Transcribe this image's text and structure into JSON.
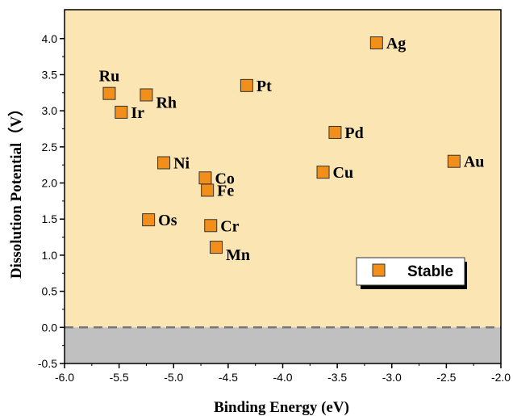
{
  "chart_data": {
    "type": "scatter",
    "xlabel": "Binding Energy (eV)",
    "ylabel": "Dissolution Potential（V）",
    "xlim": [
      -6.0,
      -2.0
    ],
    "ylim": [
      -0.5,
      4.4
    ],
    "x_ticks": [
      "-6.0",
      "-5.5",
      "-5.0",
      "-4.5",
      "-4.0",
      "-3.5",
      "-3.0",
      "-2.5",
      "-2.0"
    ],
    "y_ticks": [
      "-0.5",
      "0.0",
      "0.5",
      "1.0",
      "1.5",
      "2.0",
      "2.5",
      "3.0",
      "3.5",
      "4.0"
    ],
    "grid": false,
    "reference_line_y": 0.0,
    "stable_region_color": "#fbe5b3",
    "unstable_region_color": "#c0c0c0",
    "marker_color": "#f28f1a",
    "marker_shape": "square",
    "legend": {
      "position": "right",
      "entries": [
        "Stable"
      ]
    },
    "points": [
      {
        "label": "Ag",
        "x": -3.14,
        "y": 3.94,
        "label_pos": "right"
      },
      {
        "label": "Ru",
        "x": -5.59,
        "y": 3.24,
        "label_pos": "above"
      },
      {
        "label": "Rh",
        "x": -5.25,
        "y": 3.22,
        "label_pos": "below-right"
      },
      {
        "label": "Pt",
        "x": -4.33,
        "y": 3.35,
        "label_pos": "right"
      },
      {
        "label": "Ir",
        "x": -5.48,
        "y": 2.98,
        "label_pos": "right"
      },
      {
        "label": "Pd",
        "x": -3.52,
        "y": 2.7,
        "label_pos": "right"
      },
      {
        "label": "Au",
        "x": -2.43,
        "y": 2.3,
        "label_pos": "right"
      },
      {
        "label": "Ni",
        "x": -5.09,
        "y": 2.28,
        "label_pos": "right"
      },
      {
        "label": "Co",
        "x": -4.71,
        "y": 2.07,
        "label_pos": "right"
      },
      {
        "label": "Cu",
        "x": -3.63,
        "y": 2.15,
        "label_pos": "right"
      },
      {
        "label": "Fe",
        "x": -4.69,
        "y": 1.9,
        "label_pos": "right"
      },
      {
        "label": "Os",
        "x": -5.23,
        "y": 1.49,
        "label_pos": "right"
      },
      {
        "label": "Cr",
        "x": -4.66,
        "y": 1.41,
        "label_pos": "right"
      },
      {
        "label": "Mn",
        "x": -4.61,
        "y": 1.11,
        "label_pos": "below-right"
      }
    ]
  }
}
